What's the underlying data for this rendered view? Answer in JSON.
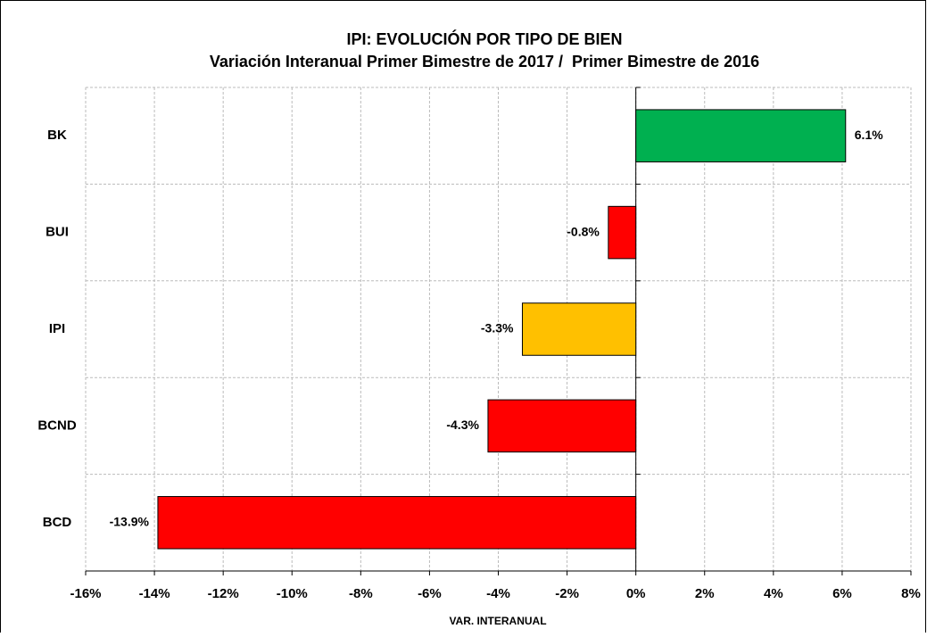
{
  "chart_data": {
    "type": "bar",
    "orientation": "horizontal",
    "title": "IPI: EVOLUCIÓN POR TIPO DE BIEN",
    "subtitle": "Variación Interanual Primer Bimestre de 2017 /  Primer Bimestre de 2016",
    "x_label": "VAR. INTERANUAL",
    "categories": [
      "BK",
      "BUI",
      "IPI",
      "BCND",
      "BCD"
    ],
    "values": [
      6.1,
      -0.8,
      -3.3,
      -4.3,
      -13.9
    ],
    "value_labels": [
      "6.1%",
      "-0.8%",
      "-3.3%",
      "-4.3%",
      "-13.9%"
    ],
    "colors": [
      "#00b050",
      "#ff0000",
      "#ffc000",
      "#ff0000",
      "#ff0000"
    ],
    "xlim": [
      -16,
      8
    ],
    "xticks": [
      {
        "value": -16,
        "label": "-16%"
      },
      {
        "value": -14,
        "label": "-14%"
      },
      {
        "value": -12,
        "label": "-12%"
      },
      {
        "value": -10,
        "label": "-10%"
      },
      {
        "value": -8,
        "label": "-8%"
      },
      {
        "value": -6,
        "label": "-6%"
      },
      {
        "value": -4,
        "label": "-4%"
      },
      {
        "value": -2,
        "label": "-2%"
      },
      {
        "value": 0,
        "label": "0%"
      },
      {
        "value": 2,
        "label": "2%"
      },
      {
        "value": 4,
        "label": "4%"
      },
      {
        "value": 6,
        "label": "6%"
      },
      {
        "value": 8,
        "label": "8%"
      }
    ],
    "grid": true
  }
}
